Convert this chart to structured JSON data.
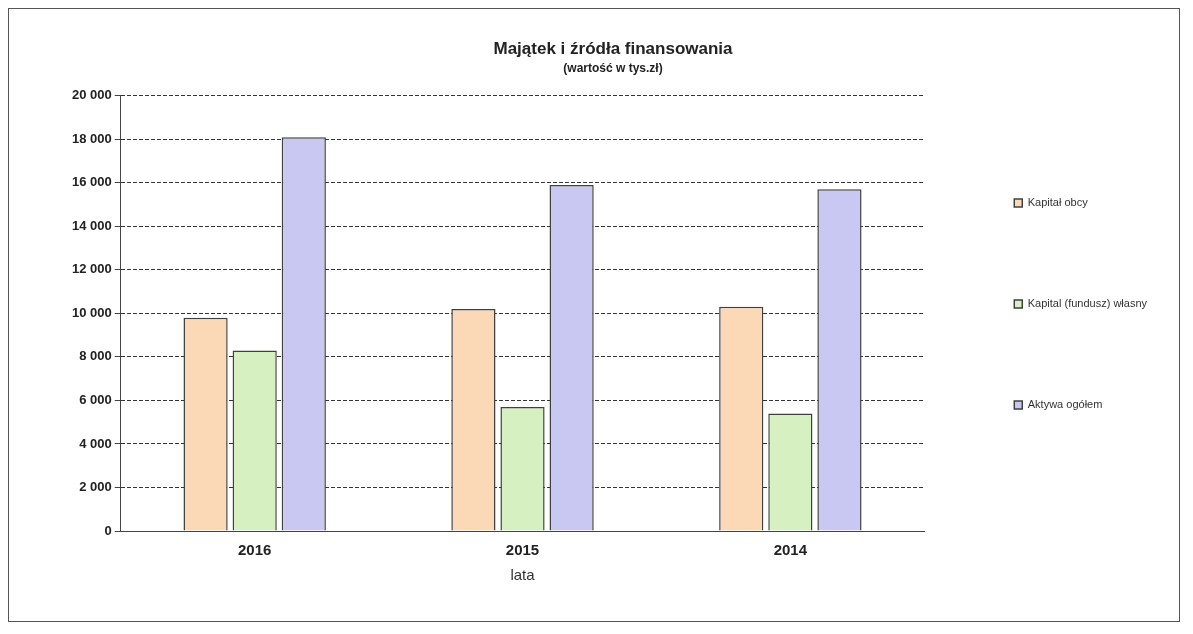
{
  "chart_data": {
    "type": "bar",
    "title": "Majątek i źródła finansowania",
    "subtitle": "(wartość w tys.zł)",
    "xlabel": "lata",
    "categories": [
      "2016",
      "2015",
      "2014"
    ],
    "series": [
      {
        "name": "Kapitał obcy",
        "color": "#fcd9b6",
        "values": [
          9800,
          10200,
          10300
        ]
      },
      {
        "name": "Kapital (fundusz) własny",
        "color": "#d6f0c2",
        "values": [
          8300,
          5700,
          5400
        ]
      },
      {
        "name": "Aktywa ogółem",
        "color": "#c8c8f2",
        "values": [
          18100,
          15900,
          15700
        ]
      }
    ],
    "ylim": [
      0,
      20000
    ],
    "yticks": [
      {
        "value": 0,
        "label": "0"
      },
      {
        "value": 2000,
        "label": "2 000"
      },
      {
        "value": 4000,
        "label": "4 000"
      },
      {
        "value": 6000,
        "label": "6 000"
      },
      {
        "value": 8000,
        "label": "8 000"
      },
      {
        "value": 10000,
        "label": "10 000"
      },
      {
        "value": 12000,
        "label": "12 000"
      },
      {
        "value": 14000,
        "label": "14 000"
      },
      {
        "value": 16000,
        "label": "16 000"
      },
      {
        "value": 18000,
        "label": "18 000"
      },
      {
        "value": 20000,
        "label": "20 000"
      }
    ],
    "grid": "y",
    "legend": "right"
  }
}
